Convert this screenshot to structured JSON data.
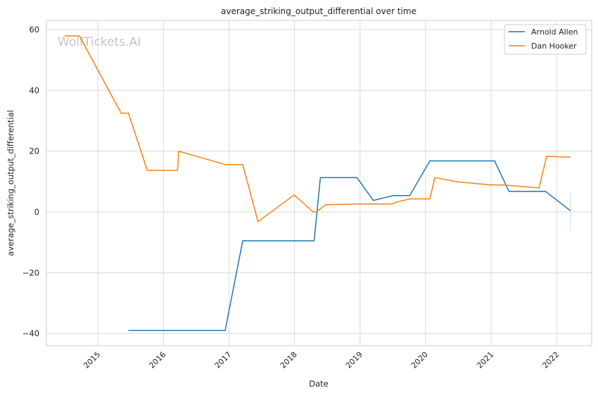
{
  "chart_data": {
    "type": "line",
    "title": "average_striking_output_differential over time",
    "xlabel": "Date",
    "ylabel": "average_striking_output_differential",
    "x_ticks": [
      "2015",
      "2016",
      "2017",
      "2018",
      "2019",
      "2020",
      "2021",
      "2022"
    ],
    "y_ticks": [
      60,
      40,
      20,
      0,
      -20,
      -40
    ],
    "xlim": [
      "2014-03-20",
      "2022-07-15"
    ],
    "ylim": [
      -44,
      63
    ],
    "grid": true,
    "legend_position": "top-right",
    "watermark": "WolfTickets.AI",
    "series": [
      {
        "name": "Arnold Allen",
        "color": "#1f77b4",
        "points": [
          [
            "2015-06-20",
            -39
          ],
          [
            "2016-12-10",
            -39
          ],
          [
            "2017-03-18",
            -9.5
          ],
          [
            "2018-04-20",
            -9.5
          ],
          [
            "2018-05-25",
            11.3
          ],
          [
            "2018-12-15",
            11.3
          ],
          [
            "2019-03-16",
            3.8
          ],
          [
            "2019-07-06",
            5.4
          ],
          [
            "2019-10-05",
            5.4
          ],
          [
            "2020-01-25",
            16.8
          ],
          [
            "2021-01-20",
            16.8
          ],
          [
            "2021-04-10",
            6.8
          ],
          [
            "2021-10-30",
            6.8
          ],
          [
            "2022-03-19",
            0.4
          ]
        ]
      },
      {
        "name": "Dan Hooker",
        "color": "#ff7f0e",
        "points": [
          [
            "2014-06-28",
            57.9
          ],
          [
            "2014-09-20",
            57.9
          ],
          [
            "2015-05-10",
            32.5
          ],
          [
            "2015-06-20",
            32.5
          ],
          [
            "2015-10-03",
            13.7
          ],
          [
            "2016-03-20",
            13.7
          ],
          [
            "2016-03-26",
            20
          ],
          [
            "2016-12-10",
            15.6
          ],
          [
            "2017-03-18",
            15.6
          ],
          [
            "2017-06-11",
            -3.2
          ],
          [
            "2017-12-30",
            5.6
          ],
          [
            "2018-04-14",
            0
          ],
          [
            "2018-05-01",
            0
          ],
          [
            "2018-06-23",
            2.4
          ],
          [
            "2018-12-15",
            2.6
          ],
          [
            "2019-06-29",
            2.6
          ],
          [
            "2019-07-20",
            3.2
          ],
          [
            "2019-10-05",
            4.3
          ],
          [
            "2020-01-25",
            4.3
          ],
          [
            "2020-02-22",
            11.3
          ],
          [
            "2020-06-27",
            9.9
          ],
          [
            "2020-12-31",
            8.9
          ],
          [
            "2021-03-05",
            8.9
          ],
          [
            "2021-09-25",
            7.9
          ],
          [
            "2021-11-06",
            18.3
          ],
          [
            "2022-03-19",
            18
          ]
        ]
      }
    ],
    "error_bar": {
      "series": "Arnold Allen",
      "x": "2022-03-19",
      "low": -6.3,
      "high": 6.7
    }
  }
}
